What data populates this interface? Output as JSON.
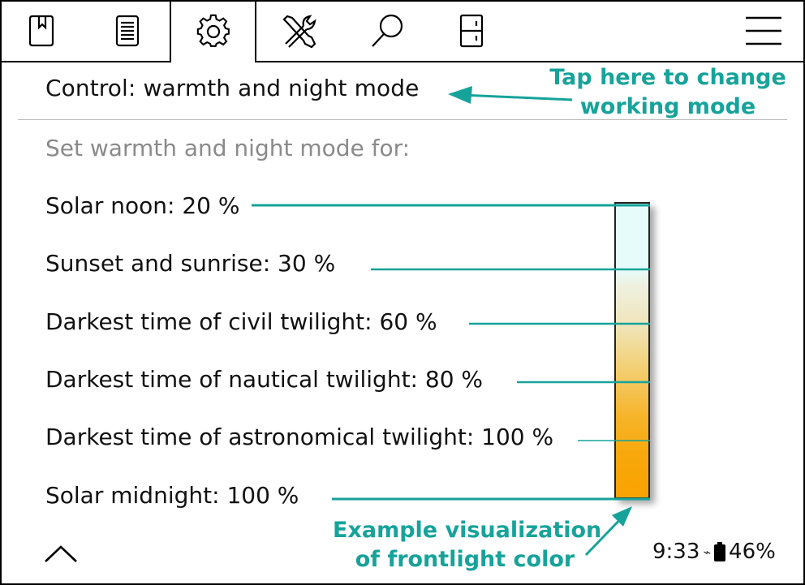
{
  "toolbar": {
    "tabs": [
      {
        "icon": "bookmark-icon"
      },
      {
        "icon": "document-icon"
      },
      {
        "icon": "gear-icon"
      },
      {
        "icon": "tools-icon"
      },
      {
        "icon": "search-icon"
      },
      {
        "icon": "cabinet-icon"
      }
    ],
    "menu_icon": "hamburger-menu-icon",
    "active_tab": 2
  },
  "panel": {
    "title": "Control: warmth and night mode",
    "subtitle": "Set warmth and night mode for:",
    "items": [
      {
        "label": "Solar noon: 20 %"
      },
      {
        "label": "Sunset and sunrise: 30 %"
      },
      {
        "label": "Darkest time of civil twilight: 60 %"
      },
      {
        "label": "Darkest time of nautical twilight: 80 %"
      },
      {
        "label": "Darkest time of astronomical twilight: 100 %"
      },
      {
        "label": "Solar midnight: 100 %"
      }
    ]
  },
  "annotations": {
    "mode_line1": "Tap here to change",
    "mode_line2": "working mode",
    "viz_line1": "Example visualization",
    "viz_line2": "of frontlight color",
    "color": "#16a39a"
  },
  "status": {
    "time": "9:33",
    "battery": "46%",
    "wifi_icon": "wifi-off-icon",
    "battery_icon": "battery-icon"
  },
  "footer": {
    "up_icon": "chevron-up-icon"
  }
}
